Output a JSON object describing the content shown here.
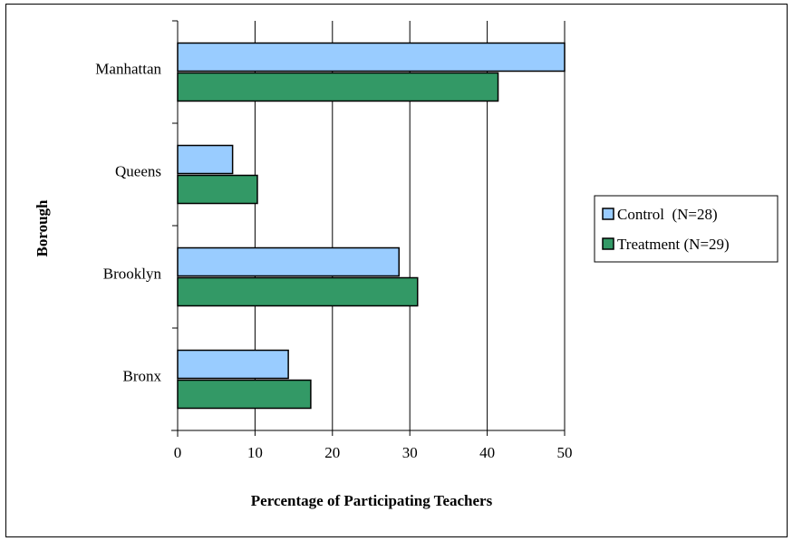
{
  "chart_data": {
    "type": "bar",
    "orientation": "horizontal",
    "categories": [
      "Manhattan",
      "Queens",
      "Brooklyn",
      "Bronx"
    ],
    "series": [
      {
        "name": "Control  (N=28)",
        "values": [
          50.0,
          7.1,
          28.6,
          14.3
        ],
        "color": "#99ccff"
      },
      {
        "name": "Treatment (N=29)",
        "values": [
          41.4,
          10.3,
          31.0,
          17.2
        ],
        "color": "#339966"
      }
    ],
    "xlabel": "Percentage of Participating Teachers",
    "ylabel": "Borough",
    "xlim": [
      0,
      50
    ],
    "xticks": [
      0,
      10,
      20,
      30,
      40,
      50
    ],
    "grid": "vertical",
    "legend_position": "right"
  }
}
